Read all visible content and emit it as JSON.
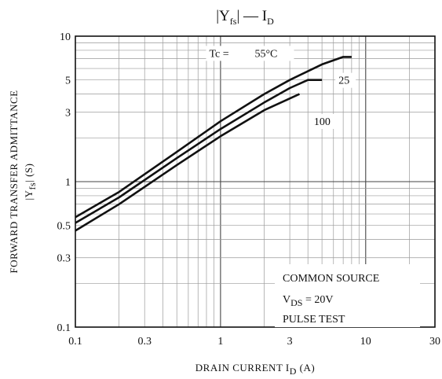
{
  "chart_data": {
    "type": "line",
    "title": {
      "pre": "|Y",
      "sub": "fs",
      "post": "| — I",
      "sub2": "D"
    },
    "xlabel": {
      "pre": "DRAIN CURRENT   I",
      "sub": "D",
      "post": "   (A)"
    },
    "ylabel": {
      "line1": "FORWARD TRANSFER ADMITTANCE",
      "pre": "|Y",
      "sub": "fs",
      "post": "|  (S)"
    },
    "x_scale": "log",
    "y_scale": "log",
    "xlim": [
      0.1,
      30
    ],
    "ylim": [
      0.1,
      10
    ],
    "x_tick_labels": [
      {
        "v": 0.1,
        "t": "0.1"
      },
      {
        "v": 0.3,
        "t": "0.3"
      },
      {
        "v": 1,
        "t": "1"
      },
      {
        "v": 3,
        "t": "3"
      },
      {
        "v": 10,
        "t": "10"
      },
      {
        "v": 30,
        "t": "30"
      }
    ],
    "y_tick_labels": [
      {
        "v": 0.1,
        "t": "0.1"
      },
      {
        "v": 0.3,
        "t": "0.3"
      },
      {
        "v": 0.5,
        "t": "0.5"
      },
      {
        "v": 1,
        "t": "1"
      },
      {
        "v": 3,
        "t": "3"
      },
      {
        "v": 5,
        "t": "5"
      },
      {
        "v": 10,
        "t": "10"
      }
    ],
    "grid": true,
    "series": [
      {
        "name": "55°C",
        "label_prefix": "Tc =",
        "label_at": [
          2.5,
          7.2
        ],
        "points": [
          [
            0.1,
            0.57
          ],
          [
            0.2,
            0.85
          ],
          [
            0.5,
            1.6
          ],
          [
            1,
            2.6
          ],
          [
            2,
            4.0
          ],
          [
            3,
            5.0
          ],
          [
            5,
            6.4
          ],
          [
            7,
            7.2
          ],
          [
            8,
            7.2
          ]
        ]
      },
      {
        "name": "25",
        "label_at": [
          6.5,
          4.7
        ],
        "points": [
          [
            0.1,
            0.52
          ],
          [
            0.2,
            0.78
          ],
          [
            0.5,
            1.45
          ],
          [
            1,
            2.3
          ],
          [
            2,
            3.5
          ],
          [
            3,
            4.4
          ],
          [
            4,
            5.0
          ],
          [
            5,
            5.0
          ]
        ]
      },
      {
        "name": "100",
        "label_at": [
          4.4,
          2.45
        ],
        "points": [
          [
            0.1,
            0.46
          ],
          [
            0.2,
            0.7
          ],
          [
            0.5,
            1.3
          ],
          [
            1,
            2.05
          ],
          [
            2,
            3.1
          ],
          [
            3.5,
            4.0
          ]
        ]
      }
    ],
    "annotation": {
      "line1": "COMMON SOURCE",
      "line2": {
        "pre": "V",
        "sub": "DS",
        "post": " = 20V"
      },
      "line3": "PULSE TEST"
    }
  }
}
